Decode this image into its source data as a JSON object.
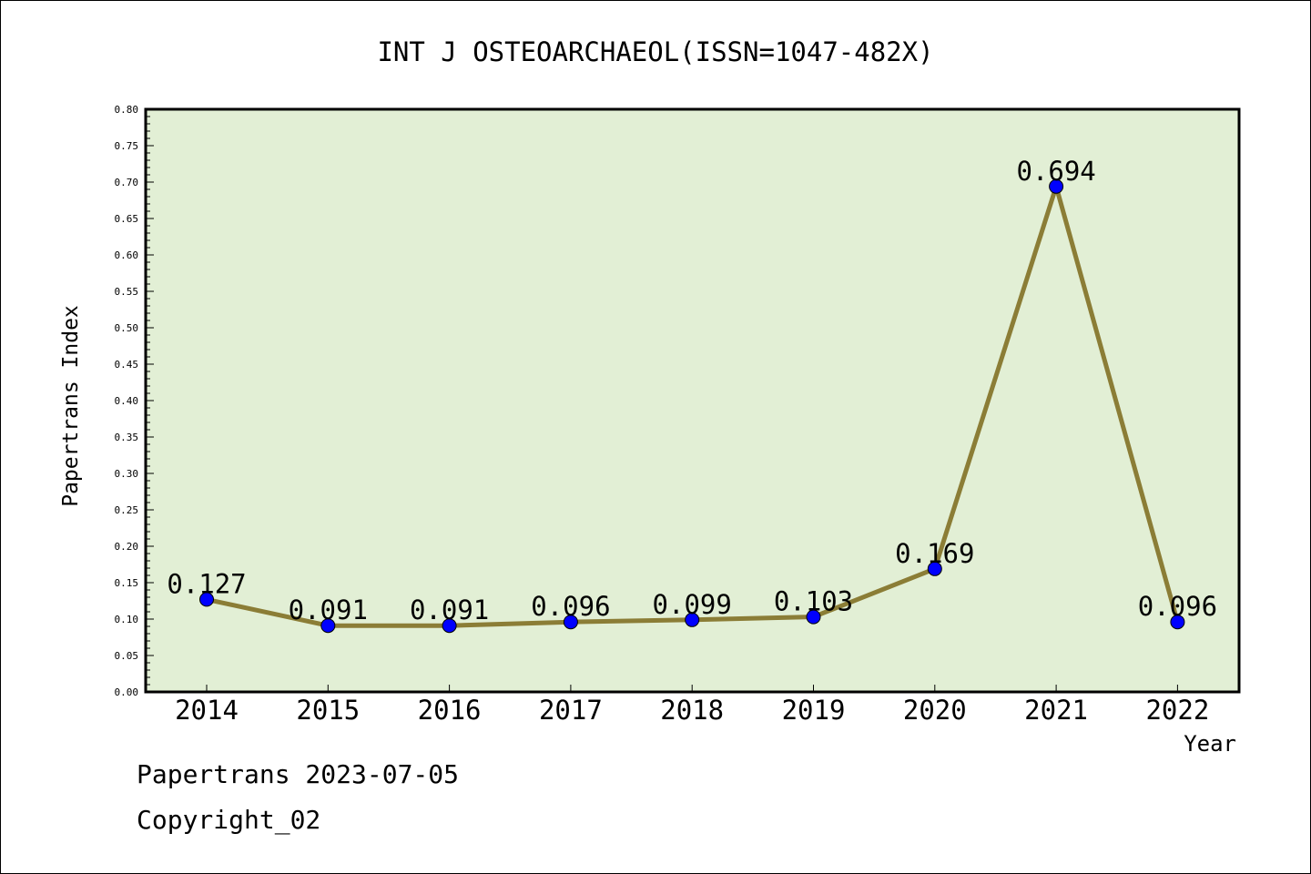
{
  "chart_data": {
    "type": "line",
    "title": "INT J OSTEOARCHAEOL(ISSN=1047-482X)",
    "xlabel": "Year",
    "ylabel": "Papertrans Index",
    "categories": [
      "2014",
      "2015",
      "2016",
      "2017",
      "2018",
      "2019",
      "2020",
      "2021",
      "2022"
    ],
    "values": [
      0.127,
      0.091,
      0.091,
      0.096,
      0.099,
      0.103,
      0.169,
      0.694,
      0.096
    ],
    "data_labels": [
      "0.127",
      "0.091",
      "0.091",
      "0.096",
      "0.099",
      "0.103",
      "0.169",
      "0.694",
      "0.096"
    ],
    "ylim": [
      0,
      0.8
    ],
    "yticks": [
      "0.00",
      "0.05",
      "0.10",
      "0.15",
      "0.20",
      "0.25",
      "0.30",
      "0.35",
      "0.40",
      "0.45",
      "0.50",
      "0.55",
      "0.60",
      "0.65",
      "0.70",
      "0.75",
      "0.80"
    ],
    "grid": false,
    "colors": {
      "plot_background": "#e2efd5",
      "line": "#8b7d36",
      "marker": "#0000ff"
    }
  },
  "footer": {
    "date_line": "Papertrans 2023-07-05",
    "copyright_line": "Copyright_02"
  }
}
